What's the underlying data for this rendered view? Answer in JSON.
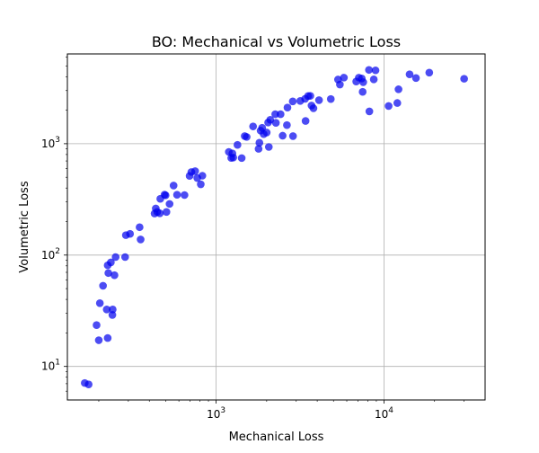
{
  "chart_data": {
    "type": "scatter",
    "title": "BO: Mechanical vs Volumetric Loss",
    "xlabel": "Mechanical Loss",
    "ylabel": "Volumetric Loss",
    "xscale": "log",
    "yscale": "log",
    "xlim": [
      130,
      40000
    ],
    "ylim": [
      5,
      6400
    ],
    "x_ticks": [
      {
        "value": 1000,
        "base": "10",
        "exp": "3"
      },
      {
        "value": 10000,
        "base": "10",
        "exp": "4"
      }
    ],
    "y_ticks": [
      {
        "value": 10,
        "base": "10",
        "exp": "1"
      },
      {
        "value": 100,
        "base": "10",
        "exp": "2"
      },
      {
        "value": 1000,
        "base": "10",
        "exp": "3"
      }
    ],
    "grid": true,
    "marker_color": "#0000ee",
    "marker_alpha": 0.7,
    "points": [
      [
        165,
        7.1
      ],
      [
        174,
        6.9
      ],
      [
        194,
        23.5
      ],
      [
        200,
        17.2
      ],
      [
        203,
        37
      ],
      [
        212,
        53
      ],
      [
        223,
        32.5
      ],
      [
        226,
        18
      ],
      [
        226,
        81
      ],
      [
        228,
        69
      ],
      [
        236,
        86
      ],
      [
        241,
        29
      ],
      [
        242,
        32.5
      ],
      [
        248,
        66
      ],
      [
        252,
        96
      ],
      [
        287,
        96
      ],
      [
        290,
        151
      ],
      [
        307,
        155
      ],
      [
        350,
        178
      ],
      [
        355,
        138
      ],
      [
        430,
        236
      ],
      [
        437,
        262
      ],
      [
        446,
        244
      ],
      [
        462,
        237
      ],
      [
        465,
        320
      ],
      [
        493,
        349
      ],
      [
        500,
        344
      ],
      [
        506,
        244
      ],
      [
        528,
        288
      ],
      [
        558,
        421
      ],
      [
        585,
        348
      ],
      [
        648,
        346
      ],
      [
        695,
        514
      ],
      [
        712,
        557
      ],
      [
        750,
        567
      ],
      [
        772,
        492
      ],
      [
        810,
        432
      ],
      [
        828,
        516
      ],
      [
        1190,
        844
      ],
      [
        1230,
        745
      ],
      [
        1250,
        819
      ],
      [
        1265,
        751
      ],
      [
        1340,
        976
      ],
      [
        1420,
        743
      ],
      [
        1480,
        1170
      ],
      [
        1520,
        1150
      ],
      [
        1660,
        1430
      ],
      [
        1790,
        899
      ],
      [
        1810,
        1020
      ],
      [
        1840,
        1310
      ],
      [
        1880,
        1390
      ],
      [
        1920,
        1220
      ],
      [
        2000,
        1260
      ],
      [
        2040,
        1550
      ],
      [
        2060,
        935
      ],
      [
        2100,
        1640
      ],
      [
        2250,
        1840
      ],
      [
        2270,
        1540
      ],
      [
        2420,
        1840
      ],
      [
        2490,
        1180
      ],
      [
        2640,
        1470
      ],
      [
        2660,
        2110
      ],
      [
        2860,
        2400
      ],
      [
        2870,
        1170
      ],
      [
        3170,
        2420
      ],
      [
        3390,
        2530
      ],
      [
        3410,
        1600
      ],
      [
        3530,
        2680
      ],
      [
        3640,
        2690
      ],
      [
        3700,
        2200
      ],
      [
        3800,
        2080
      ],
      [
        4100,
        2460
      ],
      [
        4820,
        2520
      ],
      [
        5320,
        3770
      ],
      [
        5460,
        3400
      ],
      [
        5770,
        3920
      ],
      [
        6830,
        3620
      ],
      [
        7080,
        3920
      ],
      [
        7370,
        3850
      ],
      [
        7460,
        2920
      ],
      [
        7520,
        3570
      ],
      [
        8130,
        4600
      ],
      [
        8180,
        1950
      ],
      [
        8690,
        3780
      ],
      [
        8900,
        4560
      ],
      [
        10650,
        2180
      ],
      [
        12000,
        2320
      ],
      [
        12200,
        3080
      ],
      [
        14200,
        4200
      ],
      [
        15500,
        3890
      ],
      [
        18600,
        4350
      ],
      [
        30000,
        3830
      ]
    ]
  }
}
